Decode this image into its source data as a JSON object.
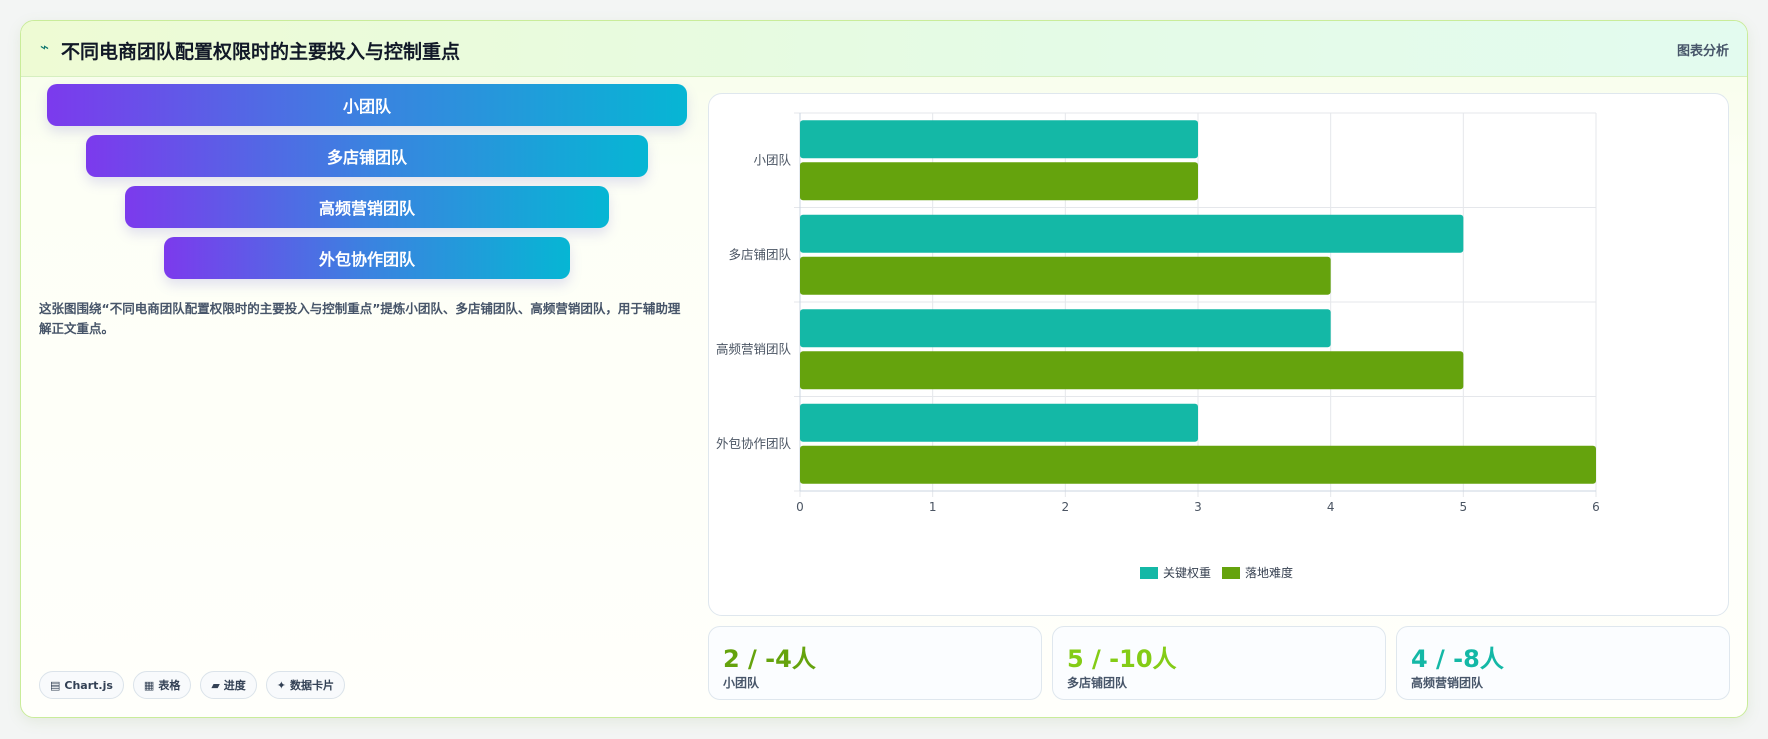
{
  "header": {
    "icon": "trend-icon",
    "title": "不同电商团队配置权限时的主要投入与控制重点",
    "tag": "图表分析"
  },
  "funnel": {
    "items": [
      "小团队",
      "多店铺团队",
      "高频营销团队",
      "外包协作团队"
    ]
  },
  "description": "这张图围绕“不同电商团队配置权限时的主要投入与控制重点”提炼小团队、多店铺团队、高频营销团队，用于辅助理解正文重点。",
  "chips": [
    {
      "icon": "chart-icon",
      "glyph": "▤",
      "label": "Chart.js"
    },
    {
      "icon": "table-icon",
      "glyph": "▦",
      "label": "表格"
    },
    {
      "icon": "progress-icon",
      "glyph": "▰",
      "label": "进度"
    },
    {
      "icon": "sparkle-icon",
      "glyph": "✦",
      "label": "数据卡片"
    }
  ],
  "chart_data": {
    "type": "bar",
    "orientation": "horizontal",
    "categories": [
      "小团队",
      "多店铺团队",
      "高频营销团队",
      "外包协作团队"
    ],
    "series": [
      {
        "name": "关键权重",
        "values": [
          3,
          5,
          4,
          3
        ],
        "color": "#14b8a6"
      },
      {
        "name": "落地难度",
        "values": [
          3,
          4,
          5,
          6
        ],
        "color": "#65a30d"
      }
    ],
    "xlim": [
      0,
      6
    ],
    "xticks": [
      0,
      1,
      2,
      3,
      4,
      5,
      6
    ],
    "grid": true,
    "legend_position": "bottom"
  },
  "stats": [
    {
      "value": "2 / -4人",
      "label": "小团队",
      "color": "#65a30d"
    },
    {
      "value": "5 / -10人",
      "label": "多店铺团队",
      "color": "#84cc16"
    },
    {
      "value": "4 / -8人",
      "label": "高频营销团队",
      "color": "#14b8a6"
    }
  ]
}
